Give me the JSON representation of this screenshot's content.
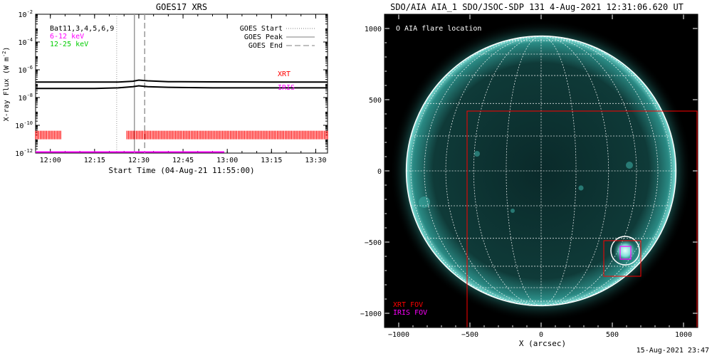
{
  "footer_timestamp": "15-Aug-2021 23:47",
  "chart_data": [
    {
      "type": "line",
      "title": "GOES17 XRS",
      "xlabel": "Start Time (04-Aug-21 11:55:00)",
      "ylabel": "X-ray Flux (W m",
      "ylabel_sup": "-2",
      "ylabel_close": ")",
      "y_scale": "log",
      "ylim": [
        1e-12,
        0.01
      ],
      "xlim_minutes": [
        0,
        99
      ],
      "x_ticks": [
        {
          "min": 5,
          "label": "12:00"
        },
        {
          "min": 20,
          "label": "12:15"
        },
        {
          "min": 35,
          "label": "12:30"
        },
        {
          "min": 50,
          "label": "12:45"
        },
        {
          "min": 65,
          "label": "13:00"
        },
        {
          "min": 80,
          "label": "13:15"
        },
        {
          "min": 95,
          "label": "13:30"
        }
      ],
      "y_ticks": [
        {
          "exp": -12,
          "base": "10",
          "sup": "-12"
        },
        {
          "exp": -10,
          "base": "10",
          "sup": "-10"
        },
        {
          "exp": -8,
          "base": "10",
          "sup": "-8"
        },
        {
          "exp": -6,
          "base": "10",
          "sup": "-6"
        },
        {
          "exp": -4,
          "base": "10",
          "sup": "-4"
        },
        {
          "exp": -2,
          "base": "10",
          "sup": "-2"
        }
      ],
      "legend_left": [
        {
          "text": "Bat11,3,4,5,6,9",
          "color": "#000000"
        },
        {
          "text": "6-12 keV",
          "color": "#ff00ff"
        },
        {
          "text": "12-25 keV",
          "color": "#00cc00"
        }
      ],
      "legend_right": [
        {
          "text": "GOES Start",
          "style": "dotted"
        },
        {
          "text": "GOES Peak",
          "style": "solid"
        },
        {
          "text": "GOES End",
          "style": "dashed"
        }
      ],
      "series": [
        {
          "name": "long",
          "color": "#000000",
          "x": [
            0,
            10,
            20,
            28,
            33,
            35,
            38,
            45,
            60,
            80,
            99
          ],
          "y": [
            1.3e-07,
            1.3e-07,
            1.3e-07,
            1.3e-07,
            1.5e-07,
            1.8e-07,
            1.6e-07,
            1.4e-07,
            1.35e-07,
            1.3e-07,
            1.3e-07
          ]
        },
        {
          "name": "short",
          "color": "#000000",
          "x": [
            0,
            10,
            20,
            28,
            33,
            35,
            38,
            45,
            60,
            80,
            99
          ],
          "y": [
            4.5e-08,
            4.5e-08,
            4.5e-08,
            5e-08,
            6e-08,
            7e-08,
            6e-08,
            5.5e-08,
            5e-08,
            5e-08,
            5e-08
          ]
        }
      ],
      "event_lines": {
        "start_min": 27.5,
        "peak_min": 33.5,
        "end_min": 37
      },
      "instrument_labels": [
        {
          "text": "XRT",
          "color": "#ff0000"
        },
        {
          "text": "IRIS",
          "color": "#ff00ff"
        }
      ],
      "xrt_coverage": {
        "color": "#ff0000",
        "level": 2e-11,
        "intervals": [
          [
            0,
            8.5
          ],
          [
            31,
            99
          ]
        ]
      },
      "iris_coverage": {
        "color": "#ff00ff",
        "level": 1.2e-12,
        "intervals": [
          [
            0,
            64
          ]
        ]
      }
    },
    {
      "type": "scatter",
      "title": "SDO/AIA AIA_1 SDO/JSOC-SDP 131  4-Aug-2021 12:31:06.620 UT",
      "xlabel": "X (arcsec)",
      "ylabel": "",
      "xlim": [
        -1100,
        1100
      ],
      "ylim": [
        -1100,
        1100
      ],
      "x_ticks": [
        -1000,
        -500,
        0,
        500,
        1000
      ],
      "y_ticks": [
        -1000,
        -500,
        0,
        500,
        1000
      ],
      "legend_top": "O AIA flare location",
      "fov_labels": [
        {
          "text": "XRT FOV",
          "color": "#ff0000"
        },
        {
          "text": "IRIS FOV",
          "color": "#ff00ff"
        }
      ],
      "solar_radius_arcsec": 947,
      "xrt_fov": {
        "x0": -520,
        "y0": -1100,
        "x1": 1095,
        "y1": 420,
        "color": "#ff0000"
      },
      "xrt_small_fov": {
        "x0": 440,
        "y0": -740,
        "x1": 700,
        "y1": -490,
        "color": "#ff0000"
      },
      "iris_fov": {
        "x0": 555,
        "y0": -620,
        "x1": 630,
        "y1": -530,
        "color": "#ff00ff"
      },
      "flare": {
        "x": 590,
        "y": -560,
        "r": 100
      },
      "disk_color": "#0f3534",
      "limb_color": "#7fe0d8"
    }
  ]
}
